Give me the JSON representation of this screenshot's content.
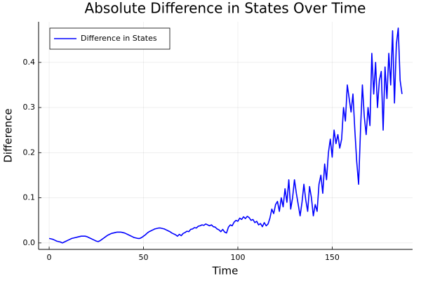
{
  "chart_data": {
    "type": "line",
    "title": "Absolute Difference in States Over Time",
    "x_label": "Time",
    "y_label": "Difference",
    "x": [
      0,
      1,
      2,
      3,
      4,
      5,
      6,
      7,
      8,
      9,
      10,
      11,
      12,
      13,
      14,
      15,
      16,
      17,
      18,
      19,
      20,
      21,
      22,
      23,
      24,
      25,
      26,
      27,
      28,
      29,
      30,
      31,
      32,
      33,
      34,
      35,
      36,
      37,
      38,
      39,
      40,
      41,
      42,
      43,
      44,
      45,
      46,
      47,
      48,
      49,
      50,
      51,
      52,
      53,
      54,
      55,
      56,
      57,
      58,
      59,
      60,
      61,
      62,
      63,
      64,
      65,
      66,
      67,
      68,
      69,
      70,
      71,
      72,
      73,
      74,
      75,
      76,
      77,
      78,
      79,
      80,
      81,
      82,
      83,
      84,
      85,
      86,
      87,
      88,
      89,
      90,
      91,
      92,
      93,
      94,
      95,
      96,
      97,
      98,
      99,
      100,
      101,
      102,
      103,
      104,
      105,
      106,
      107,
      108,
      109,
      110,
      111,
      112,
      113,
      114,
      115,
      116,
      117,
      118,
      119,
      120,
      121,
      122,
      123,
      124,
      125,
      126,
      127,
      128,
      129,
      130,
      131,
      132,
      133,
      134,
      135,
      136,
      137,
      138,
      139,
      140,
      141,
      142,
      143,
      144,
      145,
      146,
      147,
      148,
      149,
      150,
      151,
      152,
      153,
      154,
      155,
      156,
      157,
      158,
      159,
      160,
      161,
      162,
      163,
      164,
      165,
      166,
      167,
      168,
      169,
      170,
      171,
      172,
      173,
      174,
      175,
      176,
      177,
      178,
      179,
      180,
      181,
      182,
      183,
      184,
      185,
      186,
      187
    ],
    "series": [
      {
        "name": "Difference in States",
        "color": "#0000ff",
        "values": [
          0.01,
          0.009,
          0.008,
          0.006,
          0.004,
          0.003,
          0.002,
          0.0,
          0.002,
          0.004,
          0.006,
          0.008,
          0.01,
          0.011,
          0.012,
          0.013,
          0.014,
          0.015,
          0.015,
          0.015,
          0.014,
          0.012,
          0.01,
          0.008,
          0.006,
          0.004,
          0.003,
          0.005,
          0.008,
          0.011,
          0.014,
          0.017,
          0.019,
          0.021,
          0.022,
          0.023,
          0.024,
          0.024,
          0.024,
          0.023,
          0.022,
          0.02,
          0.018,
          0.016,
          0.014,
          0.012,
          0.011,
          0.01,
          0.01,
          0.012,
          0.015,
          0.018,
          0.022,
          0.025,
          0.027,
          0.029,
          0.031,
          0.032,
          0.033,
          0.033,
          0.032,
          0.031,
          0.029,
          0.027,
          0.025,
          0.022,
          0.02,
          0.018,
          0.015,
          0.019,
          0.016,
          0.021,
          0.023,
          0.026,
          0.025,
          0.03,
          0.031,
          0.034,
          0.033,
          0.037,
          0.038,
          0.04,
          0.039,
          0.042,
          0.04,
          0.038,
          0.04,
          0.036,
          0.035,
          0.031,
          0.029,
          0.025,
          0.03,
          0.024,
          0.022,
          0.035,
          0.04,
          0.038,
          0.046,
          0.05,
          0.048,
          0.055,
          0.052,
          0.058,
          0.054,
          0.059,
          0.056,
          0.05,
          0.052,
          0.045,
          0.048,
          0.04,
          0.043,
          0.036,
          0.045,
          0.038,
          0.042,
          0.055,
          0.075,
          0.065,
          0.085,
          0.092,
          0.07,
          0.1,
          0.08,
          0.12,
          0.09,
          0.14,
          0.075,
          0.1,
          0.14,
          0.11,
          0.085,
          0.06,
          0.09,
          0.13,
          0.095,
          0.07,
          0.125,
          0.1,
          0.06,
          0.085,
          0.07,
          0.13,
          0.15,
          0.11,
          0.175,
          0.14,
          0.2,
          0.23,
          0.19,
          0.25,
          0.22,
          0.24,
          0.21,
          0.23,
          0.3,
          0.27,
          0.35,
          0.32,
          0.29,
          0.33,
          0.25,
          0.18,
          0.13,
          0.25,
          0.35,
          0.28,
          0.24,
          0.3,
          0.26,
          0.42,
          0.33,
          0.4,
          0.3,
          0.36,
          0.38,
          0.25,
          0.39,
          0.32,
          0.42,
          0.35,
          0.47,
          0.31,
          0.44,
          0.476,
          0.36,
          0.33
        ]
      }
    ],
    "xlim": [
      -5.6,
      192.6
    ],
    "xticks": [
      0,
      50,
      100,
      150
    ],
    "ylim": [
      -0.0143,
      0.49
    ],
    "yticks": [
      {
        "value": 0,
        "label": "0.0"
      },
      0.1,
      0.2,
      0.3,
      0.4
    ],
    "grid": true,
    "legend": "top-left"
  }
}
